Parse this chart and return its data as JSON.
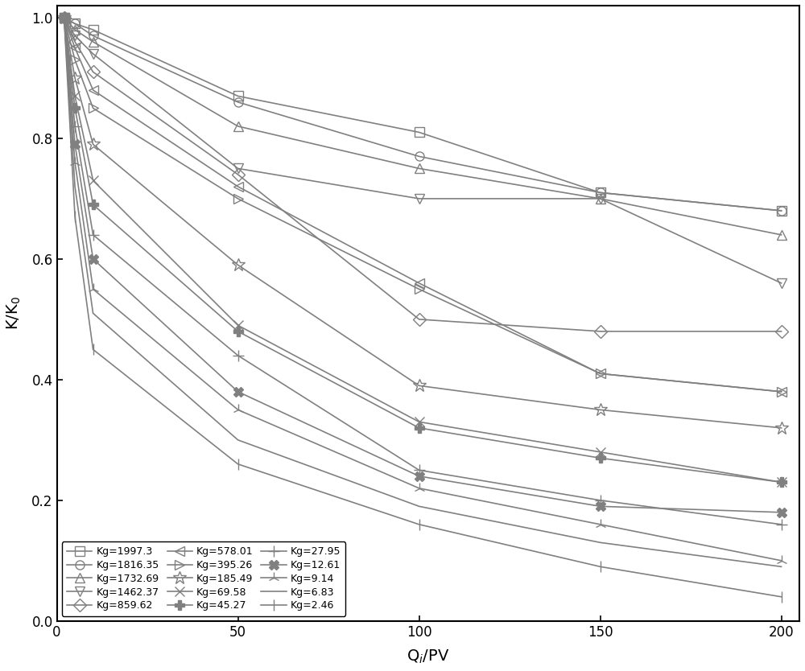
{
  "series": [
    {
      "label": "Kg=1997.3",
      "marker": "s",
      "x": [
        2,
        5,
        10,
        50,
        100,
        150,
        200
      ],
      "y": [
        1.0,
        0.99,
        0.98,
        0.87,
        0.81,
        0.71,
        0.68
      ]
    },
    {
      "label": "Kg=1816.35",
      "marker": "o",
      "x": [
        2,
        5,
        10,
        50,
        100,
        150,
        200
      ],
      "y": [
        1.0,
        0.99,
        0.97,
        0.86,
        0.77,
        0.71,
        0.68
      ]
    },
    {
      "label": "Kg=1732.69",
      "marker": "^",
      "x": [
        2,
        5,
        10,
        50,
        100,
        150,
        200
      ],
      "y": [
        1.0,
        0.98,
        0.96,
        0.82,
        0.75,
        0.7,
        0.64
      ]
    },
    {
      "label": "Kg=1462.37",
      "marker": "v",
      "x": [
        2,
        5,
        10,
        50,
        100,
        150,
        200
      ],
      "y": [
        1.0,
        0.97,
        0.94,
        0.75,
        0.7,
        0.7,
        0.56
      ]
    },
    {
      "label": "Kg=859.62",
      "marker": "D",
      "x": [
        2,
        5,
        10,
        50,
        100,
        150,
        200
      ],
      "y": [
        1.0,
        0.96,
        0.91,
        0.74,
        0.5,
        0.48,
        0.48
      ]
    },
    {
      "label": "Kg=578.01",
      "marker": "<",
      "x": [
        2,
        5,
        10,
        50,
        100,
        150,
        200
      ],
      "y": [
        1.0,
        0.95,
        0.88,
        0.72,
        0.56,
        0.41,
        0.38
      ]
    },
    {
      "label": "Kg=395.26",
      "marker": ">",
      "x": [
        2,
        5,
        10,
        50,
        100,
        150,
        200
      ],
      "y": [
        1.0,
        0.93,
        0.85,
        0.7,
        0.55,
        0.41,
        0.38
      ]
    },
    {
      "label": "Kg=185.49",
      "marker": "*",
      "x": [
        2,
        5,
        10,
        50,
        100,
        150,
        200
      ],
      "y": [
        1.0,
        0.9,
        0.79,
        0.59,
        0.39,
        0.35,
        0.32
      ]
    },
    {
      "label": "Kg=69.58",
      "marker": "x",
      "x": [
        2,
        5,
        10,
        50,
        100,
        150,
        200
      ],
      "y": [
        1.0,
        0.87,
        0.73,
        0.49,
        0.33,
        0.28,
        0.23
      ]
    },
    {
      "label": "Kg=45.27",
      "marker": "P",
      "x": [
        2,
        5,
        10,
        50,
        100,
        150,
        200
      ],
      "y": [
        1.0,
        0.85,
        0.69,
        0.48,
        0.32,
        0.27,
        0.23
      ]
    },
    {
      "label": "Kg=27.95",
      "marker": "+",
      "x": [
        2,
        5,
        10,
        50,
        100,
        150,
        200
      ],
      "y": [
        1.0,
        0.82,
        0.64,
        0.44,
        0.25,
        0.2,
        0.16
      ]
    },
    {
      "label": "Kg=12.61",
      "marker": "X",
      "x": [
        2,
        5,
        10,
        50,
        100,
        150,
        200
      ],
      "y": [
        1.0,
        0.79,
        0.6,
        0.38,
        0.24,
        0.19,
        0.18
      ]
    },
    {
      "label": "Kg=9.14",
      "marker": "2",
      "x": [
        2,
        5,
        10,
        50,
        100,
        150,
        200
      ],
      "y": [
        1.0,
        0.76,
        0.55,
        0.35,
        0.22,
        0.16,
        0.1
      ]
    },
    {
      "label": "Kg=6.83",
      "marker": "None",
      "x": [
        2,
        5,
        10,
        50,
        100,
        150,
        200
      ],
      "y": [
        1.0,
        0.72,
        0.51,
        0.3,
        0.19,
        0.13,
        0.09
      ]
    },
    {
      "label": "Kg=2.46",
      "marker": "|",
      "x": [
        2,
        5,
        10,
        50,
        100,
        150,
        200
      ],
      "y": [
        1.0,
        0.67,
        0.45,
        0.26,
        0.16,
        0.09,
        0.04
      ]
    }
  ],
  "line_color": "#808080",
  "xlabel": "Q$_i$/PV",
  "ylabel": "K/K$_0$",
  "xlim": [
    0,
    205
  ],
  "ylim": [
    0.0,
    1.02
  ],
  "xticks": [
    0,
    50,
    100,
    150,
    200
  ],
  "yticks": [
    0.0,
    0.2,
    0.4,
    0.6,
    0.8,
    1.0
  ],
  "legend_ncol": 3,
  "figsize": [
    10.0,
    8.34
  ]
}
